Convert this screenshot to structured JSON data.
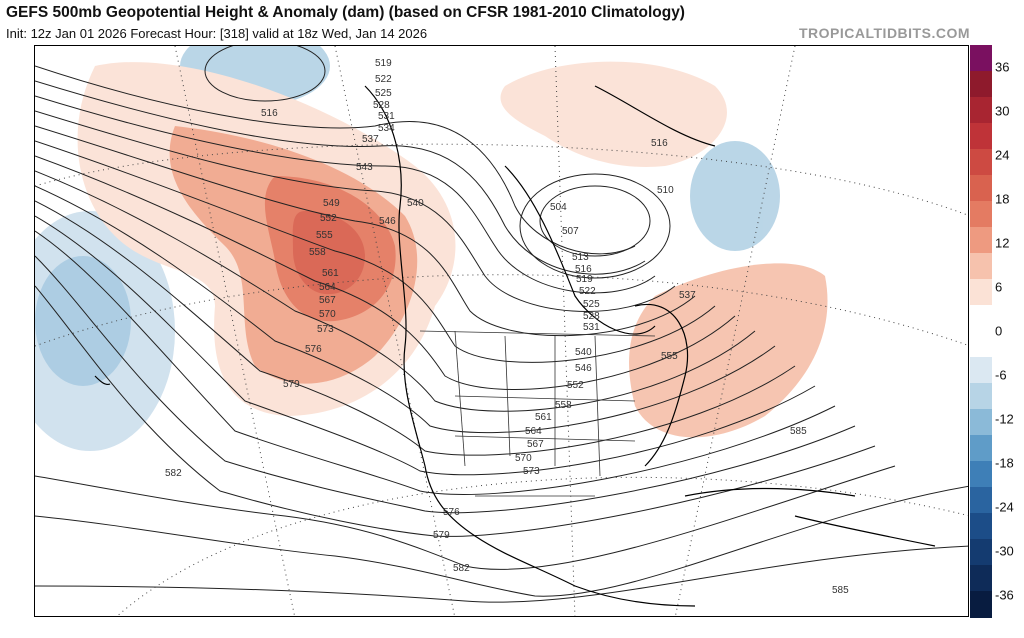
{
  "header": {
    "title": "GEFS 500mb Geopotential Height & Anomaly (dam) (based on CFSR 1981-2010 Climatology)",
    "subtitle": "Init: 12z Jan 01 2026   Forecast Hour: [318]   valid at 18z Wed, Jan 14 2026",
    "brand": "TROPICALTIDBITS.COM"
  },
  "colorbar": {
    "ticks": [
      "36",
      "30",
      "24",
      "18",
      "12",
      "6",
      "0",
      "-6",
      "-12",
      "-18",
      "-24",
      "-30",
      "-36"
    ],
    "colors": [
      "#7a1060",
      "#8e1a2c",
      "#a82531",
      "#bf3338",
      "#cd4a42",
      "#d9624f",
      "#e47b62",
      "#ee9a80",
      "#f6c2ad",
      "#fbe2d6",
      "#ffffff",
      "#ffffff",
      "#dbe8f2",
      "#b7d4e6",
      "#8bbad8",
      "#5f9cc8",
      "#3e7fb7",
      "#2a64a0",
      "#1c4d88",
      "#143b70",
      "#0e2b58",
      "#081c40"
    ]
  },
  "map": {
    "contour_labels": [
      "519",
      "522",
      "525",
      "528",
      "531",
      "534",
      "537",
      "516",
      "543",
      "549",
      "552",
      "555",
      "558",
      "561",
      "564",
      "567",
      "570",
      "573",
      "576",
      "579",
      "582",
      "546",
      "540",
      "504",
      "507",
      "510",
      "513",
      "516",
      "519",
      "522",
      "525",
      "528",
      "531",
      "537",
      "540",
      "546",
      "552",
      "555",
      "558",
      "561",
      "564",
      "567",
      "570",
      "573",
      "576",
      "579",
      "582",
      "585",
      "585",
      "516"
    ],
    "anomaly_colors": {
      "positive_light": "#f6c2ad",
      "positive_mid": "#ee9a80",
      "positive_strong": "#e47b62",
      "positive_core": "#d9624f",
      "negative_light": "#b7d4e6",
      "negative_mid": "#8bbad8"
    }
  }
}
